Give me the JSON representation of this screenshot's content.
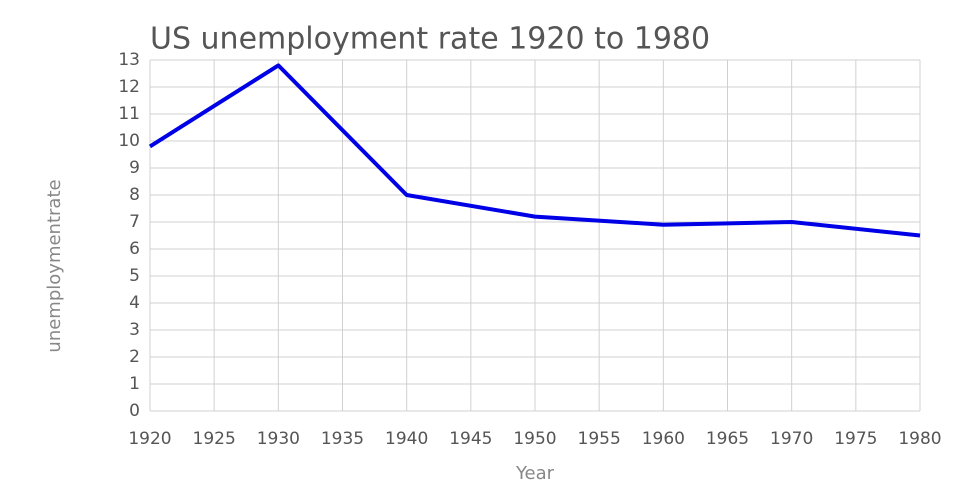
{
  "chart_data": {
    "type": "line",
    "title": "US unemployment rate 1920 to 1980",
    "x_label": "Year",
    "y_label": "unemploymentrate",
    "x": [
      1920,
      1930,
      1940,
      1950,
      1960,
      1970,
      1980
    ],
    "series": [
      {
        "name": "unemploymentrate",
        "color": "#0000e6",
        "values": [
          9.8,
          12.8,
          8.0,
          7.2,
          6.9,
          7.0,
          6.5
        ]
      }
    ],
    "xlim": [
      1920,
      1980
    ],
    "xticks": [
      1920,
      1925,
      1930,
      1935,
      1940,
      1945,
      1950,
      1955,
      1960,
      1965,
      1970,
      1975,
      1980
    ],
    "ylim": [
      0,
      13
    ],
    "yticks": [
      0,
      1,
      2,
      3,
      4,
      5,
      6,
      7,
      8,
      9,
      10,
      11,
      12,
      13
    ],
    "grid": true
  }
}
